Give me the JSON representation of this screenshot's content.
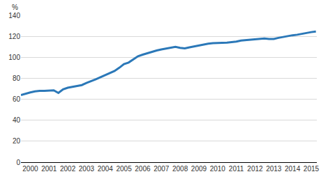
{
  "chart_data": {
    "type": "line",
    "ylabel": "%",
    "color": "#2b78b8",
    "grid": true,
    "x": [
      2000,
      2000.25,
      2000.5,
      2000.75,
      2001,
      2001.25,
      2001.5,
      2001.75,
      2002,
      2002.25,
      2002.5,
      2002.75,
      2003,
      2003.25,
      2003.5,
      2003.75,
      2004,
      2004.25,
      2004.5,
      2004.75,
      2005,
      2005.25,
      2005.5,
      2005.75,
      2006,
      2006.25,
      2006.5,
      2006.75,
      2007,
      2007.25,
      2007.5,
      2007.75,
      2008,
      2008.25,
      2008.5,
      2008.75,
      2009,
      2009.25,
      2009.5,
      2009.75,
      2010,
      2010.25,
      2010.5,
      2010.75,
      2011,
      2011.25,
      2011.5,
      2011.75,
      2012,
      2012.25,
      2012.5,
      2012.75,
      2013,
      2013.25,
      2013.5,
      2013.75,
      2014,
      2014.25,
      2014.5,
      2014.75,
      2015,
      2015.25,
      2015.5,
      2015.75
    ],
    "values": [
      64,
      65,
      66.5,
      67.5,
      68,
      68,
      68,
      68.5,
      66,
      69.5,
      71,
      72,
      72.5,
      73.5,
      75.5,
      77,
      79,
      81,
      83,
      84.5,
      87,
      90,
      93.5,
      95,
      98,
      101,
      102.5,
      104,
      105,
      106.5,
      107.5,
      108.5,
      109,
      110,
      109,
      108.5,
      109.5,
      110.5,
      111,
      112,
      113,
      113.5,
      113.5,
      113.5,
      114,
      114.5,
      115,
      116,
      116.5,
      117,
      117.5,
      117.5,
      118,
      117.5,
      117.5,
      118.5,
      119.5,
      120.5,
      121,
      121.5,
      122.5,
      123.5,
      124,
      124.5
    ],
    "xlim": [
      2000,
      2015.8
    ],
    "xticks": [
      {
        "value": 2000.5,
        "label": "2000"
      },
      {
        "value": 2001.5,
        "label": "2001"
      },
      {
        "value": 2002.5,
        "label": "2002"
      },
      {
        "value": 2003.5,
        "label": "2003"
      },
      {
        "value": 2004.5,
        "label": "2004"
      },
      {
        "value": 2005.5,
        "label": "2005"
      },
      {
        "value": 2006.5,
        "label": "2006"
      },
      {
        "value": 2007.5,
        "label": "2007"
      },
      {
        "value": 2008.5,
        "label": "2008"
      },
      {
        "value": 2009.5,
        "label": "2009"
      },
      {
        "value": 2010.5,
        "label": "2010"
      },
      {
        "value": 2011.5,
        "label": "2011"
      },
      {
        "value": 2012.5,
        "label": "2012"
      },
      {
        "value": 2013.5,
        "label": "2013"
      },
      {
        "value": 2014.5,
        "label": "2014"
      },
      {
        "value": 2015.5,
        "label": "2015"
      }
    ],
    "ylim": [
      0,
      140
    ],
    "yticks": [
      0,
      20,
      40,
      60,
      80,
      100,
      120,
      140
    ]
  }
}
